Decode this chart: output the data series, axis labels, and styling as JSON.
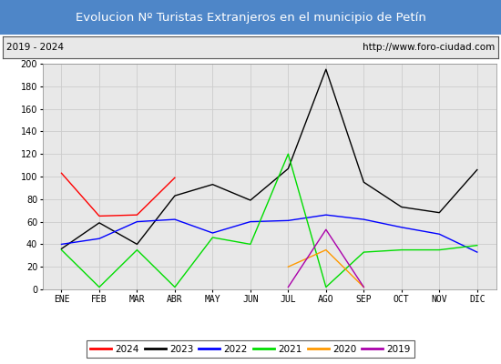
{
  "title": "Evolucion Nº Turistas Extranjeros en el municipio de Petín",
  "subtitle_left": "2019 - 2024",
  "subtitle_right": "http://www.foro-ciudad.com",
  "title_bg_color": "#4e86c8",
  "title_text_color": "#ffffff",
  "subtitle_bg_color": "#e8e8e8",
  "plot_bg_color": "#e8e8e8",
  "months": [
    "ENE",
    "FEB",
    "MAR",
    "ABR",
    "MAY",
    "JUN",
    "JUL",
    "AGO",
    "SEP",
    "OCT",
    "NOV",
    "DIC"
  ],
  "series": {
    "2024": {
      "color": "#ff0000",
      "data": [
        103,
        65,
        66,
        99,
        null,
        null,
        null,
        null,
        null,
        null,
        null,
        null
      ]
    },
    "2023": {
      "color": "#000000",
      "data": [
        36,
        59,
        40,
        83,
        93,
        79,
        107,
        195,
        95,
        73,
        68,
        106
      ]
    },
    "2022": {
      "color": "#0000ff",
      "data": [
        40,
        45,
        60,
        62,
        50,
        60,
        61,
        66,
        62,
        55,
        49,
        33
      ]
    },
    "2021": {
      "color": "#00dd00",
      "data": [
        35,
        2,
        35,
        2,
        46,
        40,
        120,
        2,
        33,
        35,
        35,
        39
      ]
    },
    "2020": {
      "color": "#ff9900",
      "data": [
        null,
        null,
        null,
        null,
        null,
        null,
        20,
        35,
        2,
        null,
        null,
        null
      ]
    },
    "2019": {
      "color": "#aa00aa",
      "data": [
        null,
        null,
        null,
        null,
        null,
        null,
        2,
        53,
        2,
        null,
        null,
        null
      ]
    }
  },
  "ylim": [
    0,
    200
  ],
  "yticks": [
    0,
    20,
    40,
    60,
    80,
    100,
    120,
    140,
    160,
    180,
    200
  ],
  "grid_color": "#cccccc",
  "fig_width": 5.5,
  "fig_height": 4.0,
  "dpi": 100
}
